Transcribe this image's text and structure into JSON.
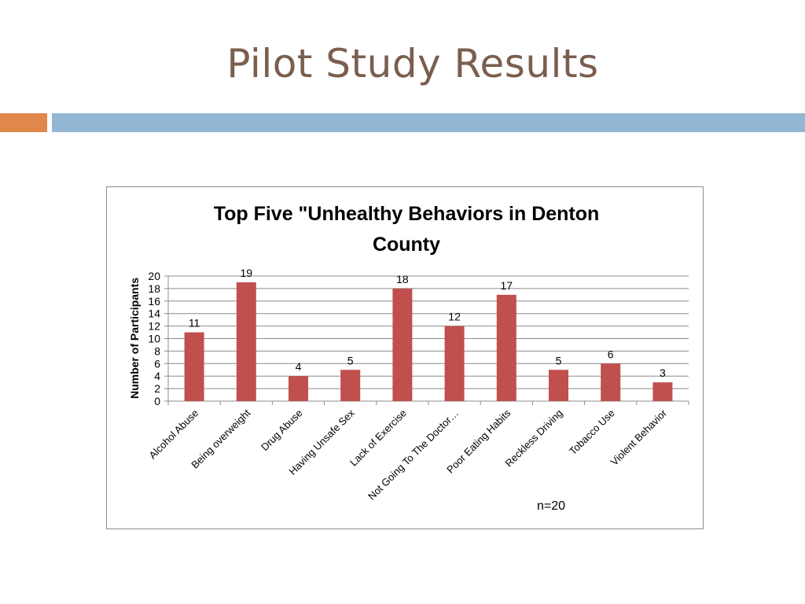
{
  "slide": {
    "title": "Pilot Study Results",
    "colors": {
      "title": "#7a5e4e",
      "accent": "#e0874a",
      "divider": "#93b6d3",
      "bar": "#c0504d"
    }
  },
  "chart_data": {
    "type": "bar",
    "title_lines": [
      "Top Five \"Unhealthy Behaviors in Denton",
      "County"
    ],
    "categories": [
      "Alcohol Abuse",
      "Being overweight",
      "Drug Abuse",
      "Having Unsafe Sex",
      "Lack of Exercise",
      "Not Going To The Doctor…",
      "Poor Eating Habits",
      "Reckless Driving",
      "Tobacco Use",
      "Violent Behavior"
    ],
    "values": [
      11,
      19,
      4,
      5,
      18,
      12,
      17,
      5,
      6,
      3
    ],
    "xlabel": "",
    "ylabel": "Number of Participants",
    "ylim": [
      0,
      20
    ],
    "ytick_step": 2,
    "grid": true,
    "legend": "none",
    "annotation": "n=20"
  }
}
